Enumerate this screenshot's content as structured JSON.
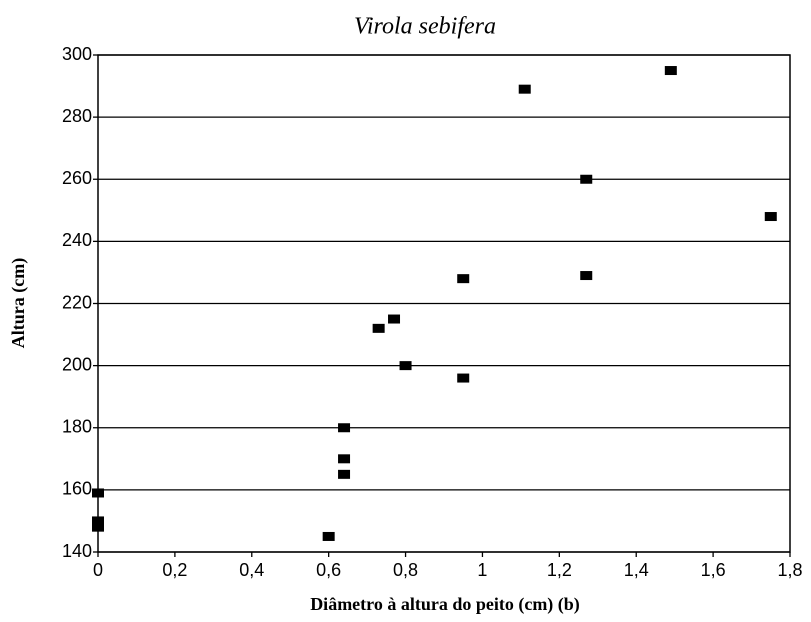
{
  "chart_data": {
    "type": "scatter",
    "title": "Virola sebifera",
    "xlabel": "Diâmetro à altura do peito (cm) (b)",
    "ylabel": "Altura (cm)",
    "series": [
      {
        "color": "#000000",
        "x": [
          0,
          0,
          0,
          0.6,
          0.64,
          0.64,
          0.64,
          0.73,
          0.77,
          0.8,
          0.95,
          0.95,
          1.11,
          1.27,
          1.27,
          1.49,
          1.75
        ],
        "values": [
          159,
          150,
          148,
          145,
          170,
          165,
          180,
          212,
          215,
          200,
          228,
          196,
          289,
          260,
          229,
          295,
          248
        ]
      }
    ],
    "xlim": [
      0,
      1.8
    ],
    "xticks": [
      0,
      {
        "value": 0.2,
        "label": "0,2"
      },
      {
        "value": 0.4,
        "label": "0,4"
      },
      {
        "value": 0.6,
        "label": "0,6"
      },
      {
        "value": 0.8,
        "label": "0,8"
      },
      1,
      {
        "value": 1.2,
        "label": "1,2"
      },
      {
        "value": 1.4,
        "label": "1,4"
      },
      {
        "value": 1.6,
        "label": "1,6"
      },
      {
        "value": 1.8,
        "label": "1,8"
      }
    ],
    "ylim": [
      140,
      300
    ],
    "yticks": [
      140,
      160,
      180,
      200,
      220,
      240,
      260,
      280,
      300
    ],
    "grid": "y"
  }
}
